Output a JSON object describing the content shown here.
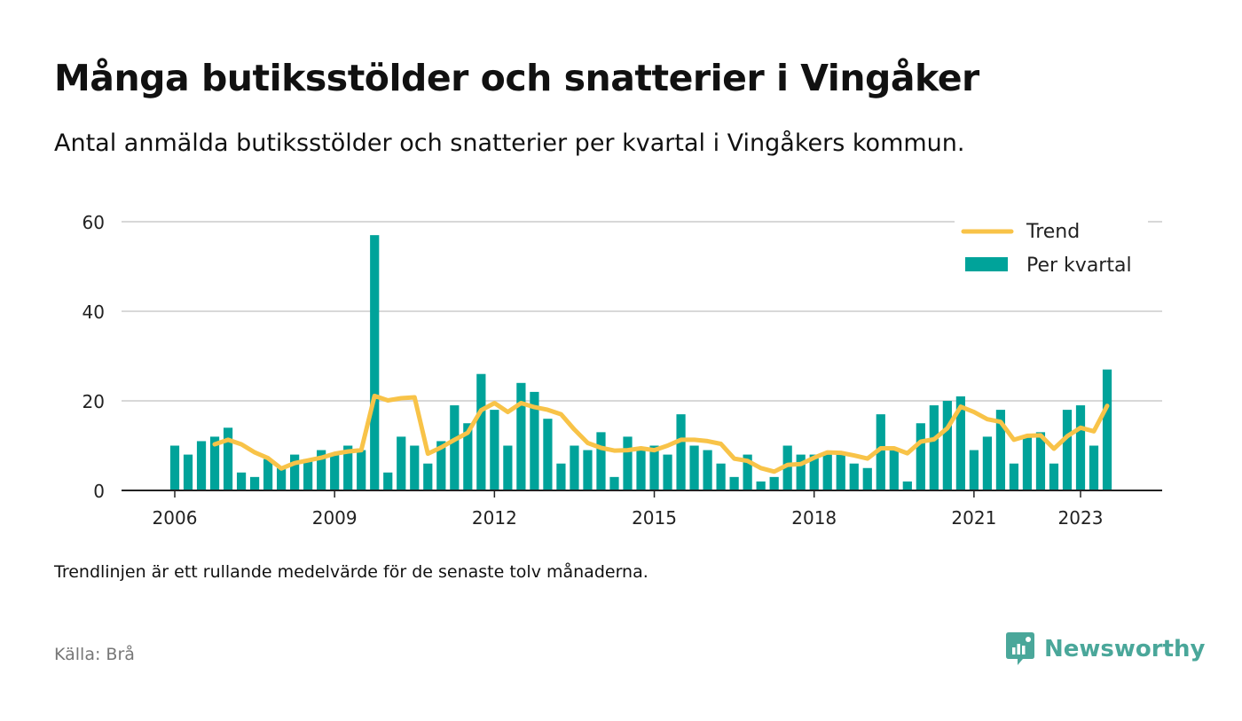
{
  "title": "Många butiksstölder och snatterier i Vingåker",
  "subtitle": "Antal anmälda butiksstölder och snatterier per kvartal i Vingåkers kommun.",
  "note": "Trendlinjen är ett rullande medelvärde för de senaste tolv månaderna.",
  "source": "Källa: Brå",
  "brand": {
    "name": "Newsworthy",
    "icon": "newsworthy-logo-icon"
  },
  "colors": {
    "bar": "#00a39a",
    "trend": "#f8c348",
    "grid": "#d8d8d8",
    "axis": "#222222"
  },
  "chart_data": {
    "type": "bar",
    "x_start": 2006,
    "x_step": 0.25,
    "xticks": [
      2006,
      2009,
      2012,
      2015,
      2018,
      2021,
      2023
    ],
    "xtick_labels": [
      "2006",
      "2009",
      "2012",
      "2015",
      "2018",
      "2021",
      "2023"
    ],
    "ylim": [
      0,
      60
    ],
    "yticks": [
      0,
      20,
      40,
      60
    ],
    "ytick_labels": [
      "0",
      "20",
      "40",
      "60"
    ],
    "legend_position": "top-right",
    "grid": true,
    "series": [
      {
        "name": "Per kvartal",
        "kind": "bar",
        "values": [
          10,
          8,
          11,
          12,
          14,
          4,
          3,
          7,
          5,
          8,
          7,
          9,
          8,
          10,
          9,
          57,
          4,
          12,
          10,
          6,
          11,
          19,
          15,
          26,
          18,
          10,
          24,
          22,
          16,
          6,
          10,
          9,
          13,
          3,
          12,
          9,
          10,
          8,
          17,
          10,
          9,
          6,
          3,
          8,
          2,
          3,
          10,
          8,
          8,
          8,
          8,
          6,
          5,
          17,
          9,
          2,
          15,
          19,
          20,
          21,
          9,
          12,
          18,
          6,
          12,
          13,
          6,
          18,
          19,
          10,
          27
        ]
      },
      {
        "name": "Trend",
        "kind": "line",
        "start_index": 3,
        "values": [
          10.3,
          11.3,
          10.3,
          8.5,
          7.2,
          4.9,
          6.1,
          6.7,
          7.3,
          8.2,
          8.7,
          9.0,
          21.1,
          20.1,
          20.6,
          20.8,
          8.2,
          9.6,
          11.3,
          12.9,
          17.9,
          19.5,
          17.5,
          19.5,
          18.6,
          18.0,
          17.0,
          13.6,
          10.6,
          9.5,
          8.9,
          9.0,
          9.4,
          9.0,
          10.0,
          11.3,
          11.3,
          11.0,
          10.4,
          7.1,
          6.6,
          5.0,
          4.2,
          5.7,
          5.9,
          7.3,
          8.5,
          8.4,
          7.8,
          7.1,
          9.4,
          9.4,
          8.3,
          10.9,
          11.4,
          13.9,
          18.7,
          17.5,
          15.9,
          15.3,
          11.3,
          12.2,
          12.3,
          9.3,
          12.1,
          14.0,
          13.2,
          18.9
        ]
      }
    ]
  }
}
